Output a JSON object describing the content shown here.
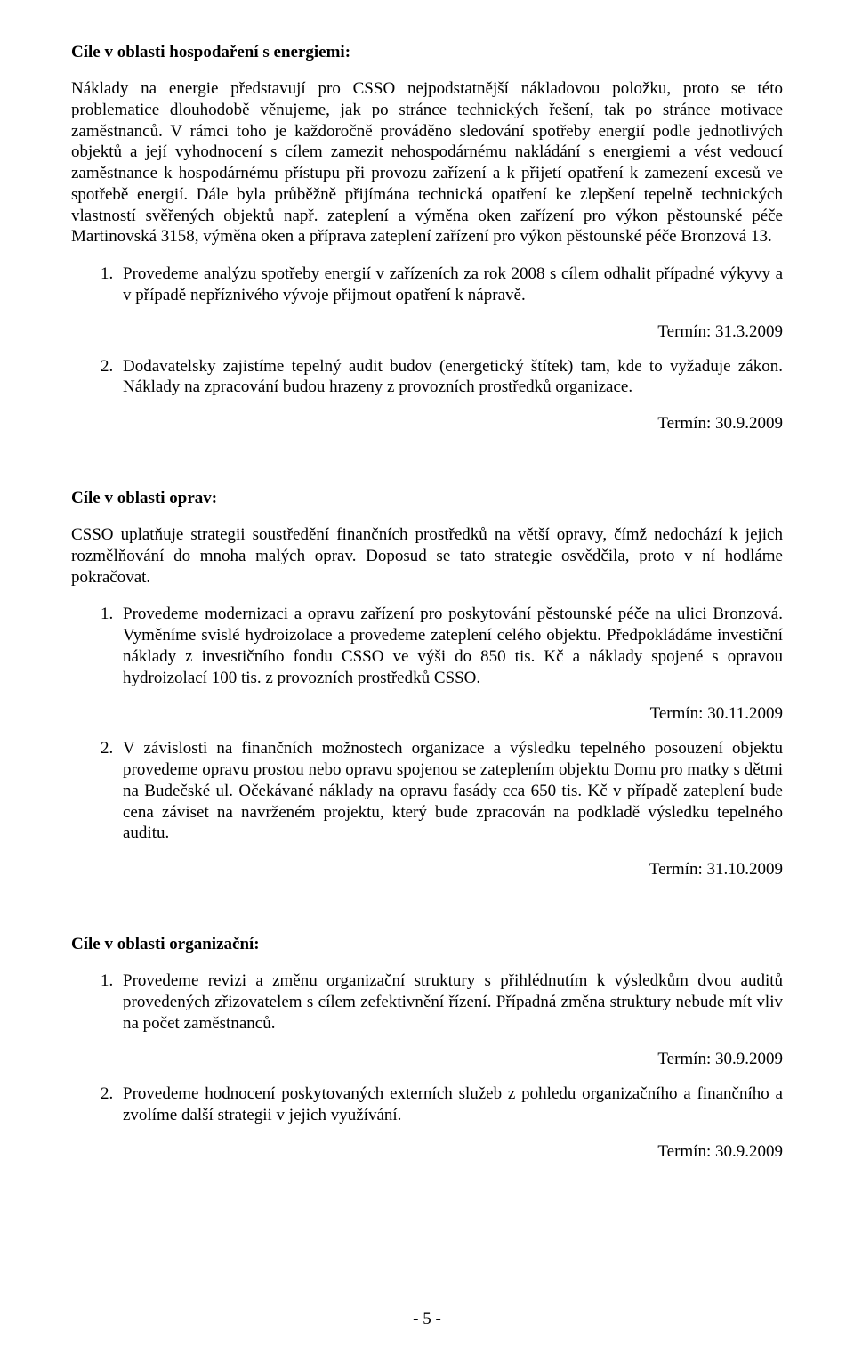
{
  "section1": {
    "title": "Cíle v oblasti hospodaření s energiemi:",
    "body": "Náklady na energie představují pro CSSO nejpodstatnější nákladovou položku, proto se této problematice dlouhodobě věnujeme, jak po stránce technických řešení, tak po stránce motivace zaměstnanců. V rámci toho je každoročně prováděno sledování spotřeby energií podle jednotlivých objektů a její vyhodnocení s cílem zamezit nehospodárnému nakládání s energiemi a vést vedoucí zaměstnance k hospodárnému přístupu při provozu zařízení a k přijetí opatření k zamezení excesů ve spotřebě energií. Dále byla  průběžně přijímána technická opatření ke zlepšení tepelně technických vlastností svěřených objektů např. zateplení a výměna oken zařízení pro výkon pěstounské péče Martinovská 3158, výměna oken a příprava zateplení zařízení pro výkon pěstounské péče Bronzová 13.",
    "items": [
      {
        "text": "Provedeme analýzu spotřeby energií v zařízeních za rok 2008 s cílem odhalit případné výkyvy a v případě nepříznivého vývoje přijmout opatření k nápravě.",
        "deadline": "Termín: 31.3.2009"
      },
      {
        "text": "Dodavatelsky zajistíme tepelný audit budov (energetický štítek) tam, kde to vyžaduje zákon. Náklady na zpracování budou hrazeny z provozních prostředků organizace.",
        "deadline": "Termín: 30.9.2009"
      }
    ]
  },
  "section2": {
    "title": "Cíle v oblasti oprav:",
    "body": "CSSO uplatňuje strategii soustředění finančních prostředků na větší opravy, čímž nedochází k jejich rozmělňování do mnoha malých oprav. Doposud se tato strategie osvědčila, proto v ní hodláme pokračovat.",
    "items": [
      {
        "text": "Provedeme modernizaci a opravu zařízení pro poskytování pěstounské péče na ulici Bronzová. Vyměníme svislé hydroizolace a provedeme zateplení celého objektu. Předpokládáme investiční náklady z investičního fondu CSSO ve výši do 850 tis. Kč a náklady spojené s opravou hydroizolací 100 tis. z provozních prostředků CSSO.",
        "deadline": "Termín: 30.11.2009"
      },
      {
        "text": "V závislosti na finančních možnostech organizace a výsledku tepelného posouzení objektu provedeme opravu prostou nebo opravu spojenou se zateplením objektu Domu pro matky s dětmi na Budečské ul. Očekávané náklady na opravu fasády cca 650 tis. Kč v případě zateplení bude cena záviset na navrženém projektu, který bude zpracován na podkladě výsledku tepelného auditu.",
        "deadline": "Termín: 31.10.2009"
      }
    ]
  },
  "section3": {
    "title": "Cíle v oblasti organizační:",
    "items": [
      {
        "text": "Provedeme revizi a změnu organizační struktury s přihlédnutím k výsledkům dvou auditů provedených zřizovatelem s cílem zefektivnění řízení. Případná změna struktury nebude mít vliv na počet zaměstnanců.",
        "deadline": "Termín: 30.9.2009"
      },
      {
        "text": "Provedeme hodnocení poskytovaných externích služeb z pohledu organizačního a finančního a zvolíme další strategii v jejich využívání.",
        "deadline": "Termín: 30.9.2009"
      }
    ]
  },
  "pageNumber": "- 5 -"
}
